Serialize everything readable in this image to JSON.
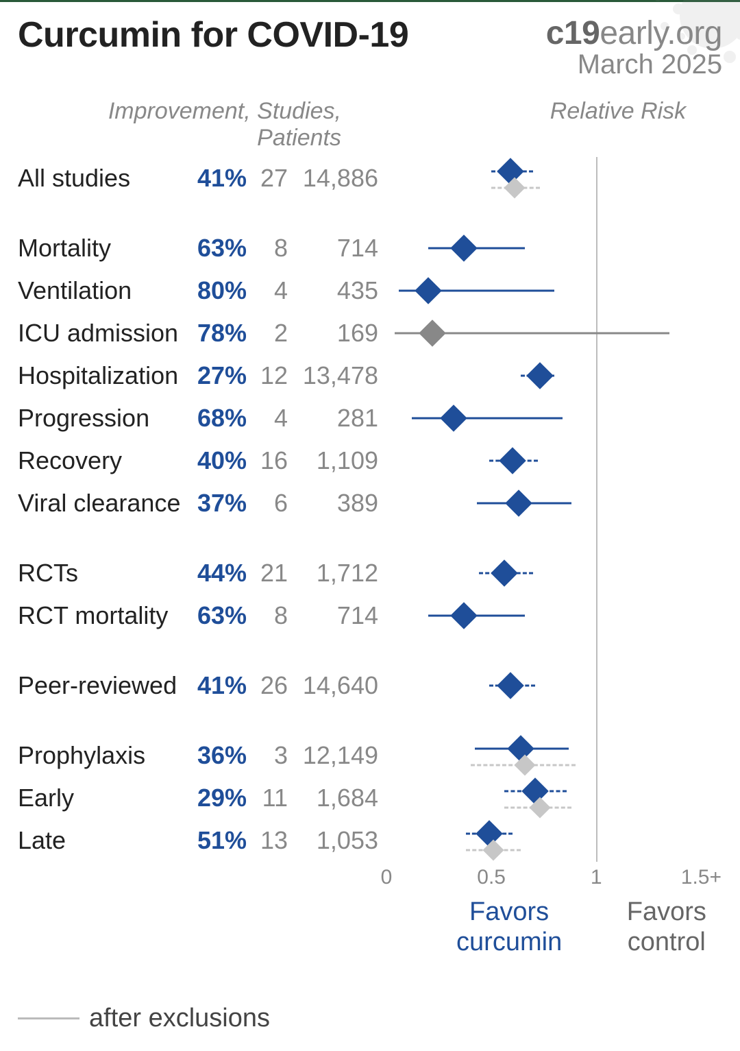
{
  "title": "Curcumin for COVID-19",
  "source": {
    "bold": "c19",
    "rest": "early.org",
    "date": "March 2025"
  },
  "subhead_left": "Improvement, Studies, Patients",
  "subhead_right": "Relative Risk",
  "colors": {
    "primary": "#1f4e99",
    "excl": "#c7c7c7",
    "axis": "#bcbcbc",
    "text": "#222222",
    "muted": "#888888"
  },
  "chart": {
    "x_min": 0,
    "x_max": 1.6,
    "axis_at": 1.0,
    "ticks": [
      {
        "v": 0,
        "label": "0"
      },
      {
        "v": 0.5,
        "label": "0.5"
      },
      {
        "v": 1.0,
        "label": "1"
      },
      {
        "v": 1.5,
        "label": "1.5+"
      }
    ],
    "diamond_size": 28,
    "line_width": 3
  },
  "rows": [
    {
      "label": "All studies",
      "improvement": "41%",
      "studies": "27",
      "patients": "14,886",
      "rr": 0.59,
      "ci_lo": 0.5,
      "ci_hi": 0.7,
      "dashed": true,
      "excl": {
        "rr": 0.61,
        "ci_lo": 0.5,
        "ci_hi": 0.73
      }
    },
    {
      "gap": true
    },
    {
      "label": "Mortality",
      "improvement": "63%",
      "studies": "8",
      "patients": "714",
      "rr": 0.37,
      "ci_lo": 0.2,
      "ci_hi": 0.66
    },
    {
      "label": "Ventilation",
      "improvement": "80%",
      "studies": "4",
      "patients": "435",
      "rr": 0.2,
      "ci_lo": 0.06,
      "ci_hi": 0.8
    },
    {
      "label": "ICU admission",
      "improvement": "78%",
      "studies": "2",
      "patients": "169",
      "rr": 0.22,
      "ci_lo": 0.04,
      "ci_hi": 1.35,
      "ci_color": "#888888"
    },
    {
      "label": "Hospitalization",
      "improvement": "27%",
      "studies": "12",
      "patients": "13,478",
      "rr": 0.73,
      "ci_lo": 0.64,
      "ci_hi": 0.8,
      "dashed": true
    },
    {
      "label": "Progression",
      "improvement": "68%",
      "studies": "4",
      "patients": "281",
      "rr": 0.32,
      "ci_lo": 0.12,
      "ci_hi": 0.84
    },
    {
      "label": "Recovery",
      "improvement": "40%",
      "studies": "16",
      "patients": "1,109",
      "rr": 0.6,
      "ci_lo": 0.49,
      "ci_hi": 0.72,
      "dashed": true
    },
    {
      "label": "Viral clearance",
      "improvement": "37%",
      "studies": "6",
      "patients": "389",
      "rr": 0.63,
      "ci_lo": 0.43,
      "ci_hi": 0.88
    },
    {
      "gap": true
    },
    {
      "label": "RCTs",
      "improvement": "44%",
      "studies": "21",
      "patients": "1,712",
      "rr": 0.56,
      "ci_lo": 0.44,
      "ci_hi": 0.7,
      "dashed": true
    },
    {
      "label": "RCT mortality",
      "improvement": "63%",
      "studies": "8",
      "patients": "714",
      "rr": 0.37,
      "ci_lo": 0.2,
      "ci_hi": 0.66
    },
    {
      "gap": true
    },
    {
      "label": "Peer-reviewed",
      "improvement": "41%",
      "studies": "26",
      "patients": "14,640",
      "rr": 0.59,
      "ci_lo": 0.49,
      "ci_hi": 0.71,
      "dashed": true
    },
    {
      "gap": true
    },
    {
      "label": "Prophylaxis",
      "improvement": "36%",
      "studies": "3",
      "patients": "12,149",
      "rr": 0.64,
      "ci_lo": 0.42,
      "ci_hi": 0.87,
      "excl": {
        "rr": 0.66,
        "ci_lo": 0.4,
        "ci_hi": 0.9
      }
    },
    {
      "label": "Early",
      "improvement": "29%",
      "studies": "11",
      "patients": "1,684",
      "rr": 0.71,
      "ci_lo": 0.56,
      "ci_hi": 0.86,
      "dashed": true,
      "excl": {
        "rr": 0.73,
        "ci_lo": 0.56,
        "ci_hi": 0.88
      }
    },
    {
      "label": "Late",
      "improvement": "51%",
      "studies": "13",
      "patients": "1,053",
      "rr": 0.49,
      "ci_lo": 0.38,
      "ci_hi": 0.6,
      "dashed": true,
      "excl": {
        "rr": 0.51,
        "ci_lo": 0.38,
        "ci_hi": 0.64
      }
    }
  ],
  "favors": {
    "left_top": "Favors",
    "left_bot": "curcumin",
    "right_top": "Favors",
    "right_bot": "control"
  },
  "legend": "after exclusions"
}
